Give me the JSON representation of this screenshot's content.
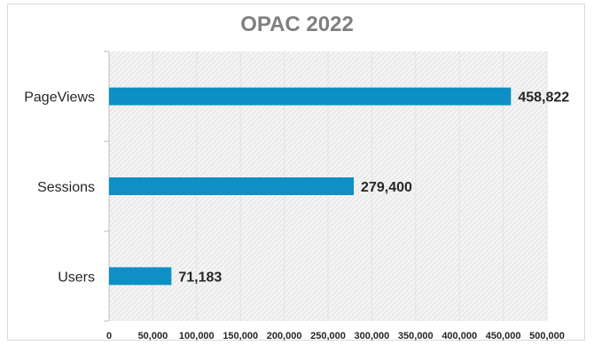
{
  "chart_data": {
    "type": "bar",
    "orientation": "horizontal",
    "title": "OPAC 2022",
    "categories": [
      "Users",
      "Sessions",
      "PageViews"
    ],
    "values": [
      71183,
      279400,
      458822
    ],
    "value_labels": [
      "71,183",
      "279,400",
      "458,822"
    ],
    "xlim": [
      0,
      500000
    ],
    "x_ticks": [
      0,
      50000,
      100000,
      150000,
      200000,
      250000,
      300000,
      350000,
      400000,
      450000,
      500000
    ],
    "x_tick_labels": [
      "0",
      "50,000",
      "100,000",
      "150,000",
      "200,000",
      "250,000",
      "300,000",
      "350,000",
      "400,000",
      "450,000",
      "500,000"
    ],
    "xlabel": "",
    "ylabel": "",
    "bar_color": "#0e8fc5",
    "grid": true,
    "legend": "none"
  }
}
